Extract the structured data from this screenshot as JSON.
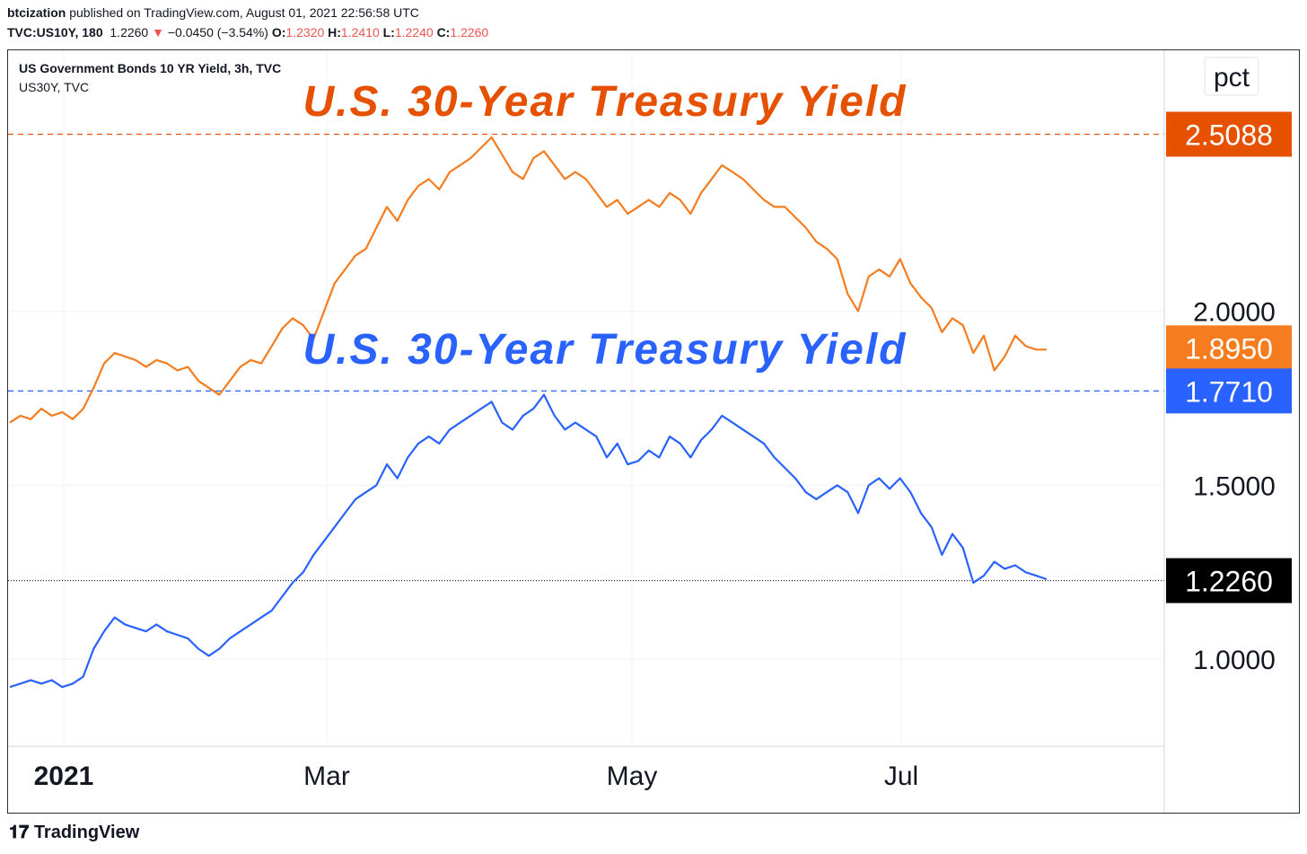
{
  "header": {
    "author": "btcization",
    "published_text": "published on TradingView.com, August 01, 2021 22:56:58 UTC",
    "symbol": "TVC:US10Y, 180",
    "last": "1.2260",
    "change_arrow": "▼",
    "change": "−0.0450 (−3.54%)",
    "open_label": "O:",
    "open": "1.2320",
    "high_label": "H:",
    "high": "1.2410",
    "low_label": "L:",
    "low": "1.2240",
    "close_label": "C:",
    "close": "1.2260"
  },
  "legend": {
    "title": "US Government Bonds 10 YR Yield, 3h, TVC",
    "second": "US30Y, TVC"
  },
  "scale_mode": "pct",
  "footer": {
    "brand": "TradingView"
  },
  "colors": {
    "orange": "#f57c1f",
    "blue": "#2962ff",
    "label_orange": "#e65100",
    "label_blue": "#2962ff",
    "black": "#000000"
  },
  "chart_data": {
    "type": "line",
    "x_ticks": [
      "2021",
      "Mar",
      "May",
      "Jul"
    ],
    "y_ticks": [
      "2.0000",
      "1.5000",
      "1.0000"
    ],
    "ylim": [
      0.75,
      2.75
    ],
    "annotations": [
      {
        "text": "U.S. 30-Year Treasury Yield",
        "color": "#e65100"
      },
      {
        "text": "U.S. 30-Year Treasury Yield",
        "color": "#2962ff"
      }
    ],
    "price_labels": [
      {
        "value": "2.5088",
        "color": "#e65100"
      },
      {
        "value": "1.8950",
        "color": "#f57c1f"
      },
      {
        "value": "1.7710",
        "color": "#2962ff"
      },
      {
        "value": "1.2260",
        "color": "#000000"
      }
    ],
    "series": [
      {
        "color": "#f57c1f",
        "values": [
          1.68,
          1.7,
          1.69,
          1.72,
          1.7,
          1.71,
          1.69,
          1.72,
          1.78,
          1.85,
          1.88,
          1.87,
          1.86,
          1.84,
          1.86,
          1.85,
          1.83,
          1.84,
          1.8,
          1.78,
          1.76,
          1.8,
          1.84,
          1.86,
          1.85,
          1.9,
          1.95,
          1.98,
          1.96,
          1.92,
          2.0,
          2.08,
          2.12,
          2.16,
          2.18,
          2.24,
          2.3,
          2.26,
          2.32,
          2.36,
          2.38,
          2.35,
          2.4,
          2.42,
          2.44,
          2.47,
          2.5,
          2.45,
          2.4,
          2.38,
          2.44,
          2.46,
          2.42,
          2.38,
          2.4,
          2.38,
          2.34,
          2.3,
          2.32,
          2.28,
          2.3,
          2.32,
          2.3,
          2.34,
          2.32,
          2.28,
          2.34,
          2.38,
          2.42,
          2.4,
          2.38,
          2.35,
          2.32,
          2.3,
          2.3,
          2.27,
          2.24,
          2.2,
          2.18,
          2.15,
          2.05,
          2.0,
          2.1,
          2.12,
          2.1,
          2.15,
          2.08,
          2.04,
          2.01,
          1.94,
          1.98,
          1.96,
          1.88,
          1.93,
          1.83,
          1.87,
          1.93,
          1.9,
          1.89,
          1.89
        ]
      },
      {
        "color": "#2962ff",
        "values": [
          0.92,
          0.93,
          0.94,
          0.93,
          0.94,
          0.92,
          0.93,
          0.95,
          1.03,
          1.08,
          1.12,
          1.1,
          1.09,
          1.08,
          1.1,
          1.08,
          1.07,
          1.06,
          1.03,
          1.01,
          1.03,
          1.06,
          1.08,
          1.1,
          1.12,
          1.14,
          1.18,
          1.22,
          1.25,
          1.3,
          1.34,
          1.38,
          1.42,
          1.46,
          1.48,
          1.5,
          1.56,
          1.52,
          1.58,
          1.62,
          1.64,
          1.62,
          1.66,
          1.68,
          1.7,
          1.72,
          1.74,
          1.68,
          1.66,
          1.7,
          1.72,
          1.76,
          1.7,
          1.66,
          1.68,
          1.66,
          1.64,
          1.58,
          1.62,
          1.56,
          1.57,
          1.6,
          1.58,
          1.64,
          1.62,
          1.58,
          1.63,
          1.66,
          1.7,
          1.68,
          1.66,
          1.64,
          1.62,
          1.58,
          1.55,
          1.52,
          1.48,
          1.46,
          1.48,
          1.5,
          1.48,
          1.42,
          1.5,
          1.52,
          1.49,
          1.52,
          1.48,
          1.42,
          1.38,
          1.3,
          1.36,
          1.32,
          1.22,
          1.24,
          1.28,
          1.26,
          1.27,
          1.25,
          1.24,
          1.23
        ]
      }
    ]
  }
}
